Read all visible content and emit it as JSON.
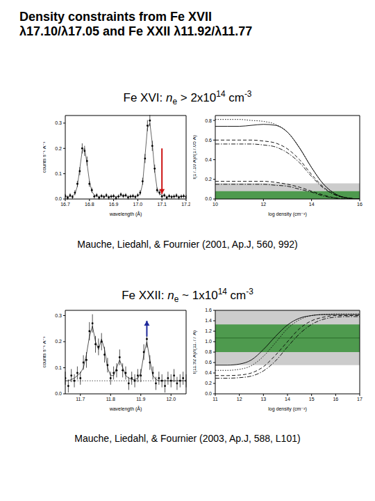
{
  "title": [
    "Density constraints from Fe XVII",
    "λ17.10/λ17.05 and Fe XXII λ11.92/λ11.77"
  ],
  "sections": [
    {
      "heading": [
        {
          "text": "Fe XVI: ",
          "style": "normal"
        },
        {
          "text": "n",
          "style": "italic"
        },
        {
          "text": "e",
          "style": "sub"
        },
        {
          "text": " > 2x10",
          "style": "normal"
        },
        {
          "text": "14",
          "style": "sup"
        },
        {
          "text": " cm",
          "style": "normal"
        },
        {
          "text": "-3",
          "style": "sup"
        }
      ],
      "caption": "Mauche, Liedahl, & Fournier (2001, Ap.J, 560, 992)"
    },
    {
      "heading": [
        {
          "text": "Fe XXII: ",
          "style": "normal"
        },
        {
          "text": "n",
          "style": "italic"
        },
        {
          "text": "e",
          "style": "sub"
        },
        {
          "text": " ~ 1x10",
          "style": "normal"
        },
        {
          "text": "14",
          "style": "sup"
        },
        {
          "text": " cm",
          "style": "normal"
        },
        {
          "text": "-3",
          "style": "sup"
        }
      ],
      "caption": "Mauche, Liedahl, & Fournier (2003, Ap.J, 588, L101)"
    }
  ],
  "chart_data": [
    {
      "type": "spectrum",
      "x_label": "wavelength (Å)",
      "y_label": "counts s⁻¹ Å⁻¹",
      "xlim": [
        16.7,
        17.2
      ],
      "xticks": [
        16.7,
        16.8,
        16.9,
        {
          "value": 17,
          "label": "17.0"
        },
        17.1,
        17.2
      ],
      "ylim": [
        0,
        0.33
      ],
      "yticks": [
        {
          "value": 0,
          "label": "0.0"
        },
        0.1,
        0.2,
        0.3
      ],
      "x": [
        16.7,
        16.71,
        16.72,
        16.73,
        16.74,
        16.75,
        16.76,
        16.77,
        16.78,
        16.79,
        16.8,
        16.81,
        16.82,
        16.83,
        16.84,
        16.85,
        16.86,
        16.87,
        16.88,
        16.89,
        16.9,
        16.91,
        16.92,
        16.93,
        16.94,
        16.95,
        16.96,
        16.97,
        16.98,
        16.99,
        17.0,
        17.01,
        17.02,
        17.03,
        17.04,
        17.05,
        17.06,
        17.07,
        17.08,
        17.09,
        17.1,
        17.11,
        17.12,
        17.13,
        17.14,
        17.15,
        17.16,
        17.17,
        17.18,
        17.19,
        17.2
      ],
      "series": [
        {
          "type": "scatter",
          "color": "#000000",
          "marker": "circle",
          "values": [
            0.012,
            0.005,
            0.015,
            0.008,
            0.025,
            0.06,
            0.11,
            0.2,
            0.19,
            0.15,
            0.06,
            0.035,
            0.01,
            0.015,
            0.005,
            0.012,
            0.008,
            0.015,
            0.006,
            0.01,
            0.012,
            0.004,
            0.01,
            0.018,
            0.012,
            0.015,
            0.006,
            0.01,
            0.012,
            0.008,
            0.015,
            0.025,
            0.07,
            0.16,
            0.29,
            0.31,
            0.21,
            0.12,
            0.035,
            0.025,
            0.01,
            0.015,
            0.005,
            0.012,
            0.008,
            0.01,
            0.014,
            0.006,
            0.01,
            0.012,
            0.008
          ],
          "errors": [
            0.008,
            0.008,
            0.008,
            0.008,
            0.01,
            0.012,
            0.016,
            0.02,
            0.02,
            0.018,
            0.012,
            0.01,
            0.008,
            0.008,
            0.008,
            0.008,
            0.008,
            0.008,
            0.008,
            0.008,
            0.008,
            0.008,
            0.008,
            0.008,
            0.008,
            0.008,
            0.008,
            0.008,
            0.008,
            0.008,
            0.008,
            0.01,
            0.014,
            0.018,
            0.022,
            0.022,
            0.02,
            0.016,
            0.01,
            0.01,
            0.008,
            0.008,
            0.008,
            0.008,
            0.008,
            0.008,
            0.008,
            0.008,
            0.008,
            0.008,
            0.008
          ]
        },
        {
          "type": "line",
          "color": "#666666",
          "line_style": "solid",
          "values": [
            0.01,
            0.01,
            0.01,
            0.012,
            0.02,
            0.05,
            0.12,
            0.19,
            0.2,
            0.14,
            0.07,
            0.03,
            0.015,
            0.01,
            0.01,
            0.012,
            0.01,
            0.01,
            0.01,
            0.01,
            0.01,
            0.01,
            0.01,
            0.012,
            0.015,
            0.012,
            0.01,
            0.01,
            0.01,
            0.01,
            0.012,
            0.02,
            0.06,
            0.17,
            0.28,
            0.3,
            0.22,
            0.11,
            0.04,
            0.02,
            0.015,
            0.012,
            0.01,
            0.01,
            0.01,
            0.01,
            0.01,
            0.01,
            0.01,
            0.01,
            0.01
          ]
        }
      ],
      "arrow": {
        "x": 17.1,
        "y_from": 0.2,
        "y_to": 0.02,
        "color": "#cc1111"
      }
    },
    {
      "type": "line",
      "x_label": "log density (cm⁻³)",
      "y_label": "I(17.10 Å)/I(17.05 Å)",
      "xlim": [
        10,
        16
      ],
      "xticks": [
        10,
        12,
        14,
        16
      ],
      "ylim": [
        0,
        0.85
      ],
      "yticks": [
        {
          "value": 0,
          "label": "0.0"
        },
        0.2,
        0.4,
        0.6,
        0.8
      ],
      "bands": [
        {
          "y_from": 0,
          "y_to": 0.16,
          "color": "#cccccc"
        },
        {
          "y_from": 0,
          "y_to": 0.08,
          "color": "#4e9a4e"
        }
      ],
      "x": [
        10,
        10.5,
        11,
        11.5,
        12,
        12.5,
        13,
        13.5,
        14,
        14.5,
        15,
        15.5,
        16
      ],
      "series": [
        {
          "color": "#000000",
          "line_style": "dotted",
          "values": [
            0.81,
            0.81,
            0.81,
            0.8,
            0.79,
            0.76,
            0.68,
            0.52,
            0.32,
            0.15,
            0.05,
            0.01,
            0
          ]
        },
        {
          "color": "#000000",
          "line_style": "solid",
          "values": [
            0.74,
            0.74,
            0.74,
            0.75,
            0.76,
            0.75,
            0.68,
            0.52,
            0.32,
            0.15,
            0.05,
            0.01,
            0
          ]
        },
        {
          "color": "#000000",
          "line_style": "dashed",
          "values": [
            0.6,
            0.6,
            0.6,
            0.6,
            0.59,
            0.57,
            0.51,
            0.4,
            0.25,
            0.12,
            0.04,
            0.01,
            0
          ]
        },
        {
          "color": "#000000",
          "line_style": "dashdot",
          "values": [
            0.56,
            0.56,
            0.56,
            0.56,
            0.55,
            0.53,
            0.47,
            0.37,
            0.23,
            0.11,
            0.04,
            0.01,
            0
          ]
        },
        {
          "color": "#000000",
          "line_style": "dashed",
          "values": [
            0.18,
            0.18,
            0.18,
            0.18,
            0.18,
            0.17,
            0.15,
            0.12,
            0.08,
            0.04,
            0.01,
            0,
            0
          ]
        },
        {
          "color": "#000000",
          "line_style": "dashdot",
          "values": [
            0.15,
            0.15,
            0.15,
            0.15,
            0.15,
            0.14,
            0.13,
            0.1,
            0.07,
            0.03,
            0.01,
            0,
            0
          ]
        }
      ]
    },
    {
      "type": "spectrum",
      "x_label": "wavelength (Å)",
      "y_label": "counts s⁻¹ Å⁻¹",
      "xlim": [
        11.65,
        12.05
      ],
      "xticks": [
        11.7,
        11.8,
        11.9,
        {
          "value": 12,
          "label": "12.0"
        }
      ],
      "ylim": [
        0,
        0.32
      ],
      "yticks": [
        {
          "value": 0,
          "label": "0.0"
        },
        0.1,
        0.2,
        0.3
      ],
      "reference_line": {
        "y": 0.05,
        "line_style": "dotted",
        "color": "#555555"
      },
      "x": [
        11.65,
        11.66,
        11.67,
        11.68,
        11.69,
        11.7,
        11.71,
        11.72,
        11.73,
        11.74,
        11.75,
        11.76,
        11.77,
        11.78,
        11.79,
        11.8,
        11.81,
        11.82,
        11.83,
        11.84,
        11.85,
        11.86,
        11.87,
        11.88,
        11.89,
        11.9,
        11.91,
        11.92,
        11.93,
        11.94,
        11.95,
        11.96,
        11.97,
        11.98,
        11.99,
        12.0,
        12.01,
        12.02,
        12.03,
        12.04,
        12.05
      ],
      "series": [
        {
          "type": "scatter",
          "color": "#000000",
          "marker": "circle",
          "values": [
            0.06,
            0.03,
            0.07,
            0.05,
            0.08,
            0.06,
            0.12,
            0.13,
            0.24,
            0.27,
            0.19,
            0.18,
            0.2,
            0.15,
            0.11,
            0.06,
            0.08,
            0.09,
            0.14,
            0.09,
            0.08,
            0.04,
            0.06,
            0.05,
            0.07,
            0.07,
            0.16,
            0.21,
            0.12,
            0.08,
            0.04,
            0.06,
            0.05,
            0.03,
            0.06,
            0.05,
            0.07,
            0.04,
            0.05,
            0.06,
            0.05
          ],
          "errors": [
            0.025,
            0.025,
            0.025,
            0.025,
            0.025,
            0.025,
            0.028,
            0.03,
            0.035,
            0.035,
            0.032,
            0.032,
            0.033,
            0.03,
            0.028,
            0.025,
            0.025,
            0.027,
            0.03,
            0.027,
            0.025,
            0.025,
            0.025,
            0.025,
            0.025,
            0.025,
            0.03,
            0.033,
            0.028,
            0.025,
            0.025,
            0.025,
            0.025,
            0.025,
            0.025,
            0.025,
            0.025,
            0.025,
            0.025,
            0.025,
            0.025
          ]
        },
        {
          "type": "line",
          "color": "#555555",
          "line_style": "solid",
          "values": [
            0.05,
            0.05,
            0.055,
            0.06,
            0.07,
            0.08,
            0.1,
            0.15,
            0.22,
            0.26,
            0.2,
            0.17,
            0.21,
            0.17,
            0.1,
            0.07,
            0.07,
            0.1,
            0.13,
            0.1,
            0.07,
            0.06,
            0.055,
            0.055,
            0.06,
            0.08,
            0.15,
            0.2,
            0.13,
            0.07,
            0.055,
            0.05,
            0.05,
            0.05,
            0.05,
            0.05,
            0.05,
            0.05,
            0.05,
            0.05,
            0.05
          ]
        }
      ],
      "arrow": {
        "x": 11.92,
        "y_from": 0.22,
        "y_to": 0.28,
        "color": "#1f2a9c"
      }
    },
    {
      "type": "line",
      "x_label": "log density (cm⁻³)",
      "y_label": "I(11.92 Å)/I(11.77 Å)",
      "xlim": [
        11,
        17
      ],
      "xticks": [
        11,
        12,
        13,
        14,
        15,
        16,
        17
      ],
      "ylim": [
        0,
        1.6
      ],
      "yticks": [
        {
          "value": 0,
          "label": "0.0"
        },
        0.2,
        0.4,
        0.6,
        0.8,
        {
          "value": 1,
          "label": "1.0"
        },
        1.2,
        1.4,
        1.6
      ],
      "bands": [
        {
          "y_from": 0.55,
          "y_to": 1.6,
          "color": "#cccccc"
        },
        {
          "y_from": 0.8,
          "y_to": 1.33,
          "color": "#4e9a4e"
        }
      ],
      "reference_line": {
        "y": 1.07,
        "line_style": "solid",
        "color": "#2a6b2a"
      },
      "x": [
        11,
        11.5,
        12,
        12.5,
        13,
        13.5,
        14,
        14.5,
        15,
        15.5,
        16,
        16.5,
        17
      ],
      "series": [
        {
          "color": "#000000",
          "line_style": "solid",
          "values": [
            0.55,
            0.55,
            0.57,
            0.65,
            0.85,
            1.1,
            1.32,
            1.45,
            1.5,
            1.52,
            1.52,
            1.52,
            1.52
          ]
        },
        {
          "color": "#000000",
          "line_style": "dotted",
          "values": [
            0.45,
            0.45,
            0.47,
            0.54,
            0.72,
            0.98,
            1.25,
            1.42,
            1.5,
            1.52,
            1.53,
            1.53,
            1.53
          ]
        },
        {
          "color": "#000000",
          "line_style": "dashed",
          "values": [
            0.35,
            0.35,
            0.36,
            0.4,
            0.52,
            0.74,
            1.0,
            1.25,
            1.4,
            1.47,
            1.5,
            1.5,
            1.5
          ]
        },
        {
          "color": "#000000",
          "line_style": "dashdot",
          "values": [
            0.3,
            0.3,
            0.31,
            0.34,
            0.44,
            0.63,
            0.9,
            1.15,
            1.33,
            1.43,
            1.47,
            1.48,
            1.48
          ]
        }
      ]
    }
  ]
}
